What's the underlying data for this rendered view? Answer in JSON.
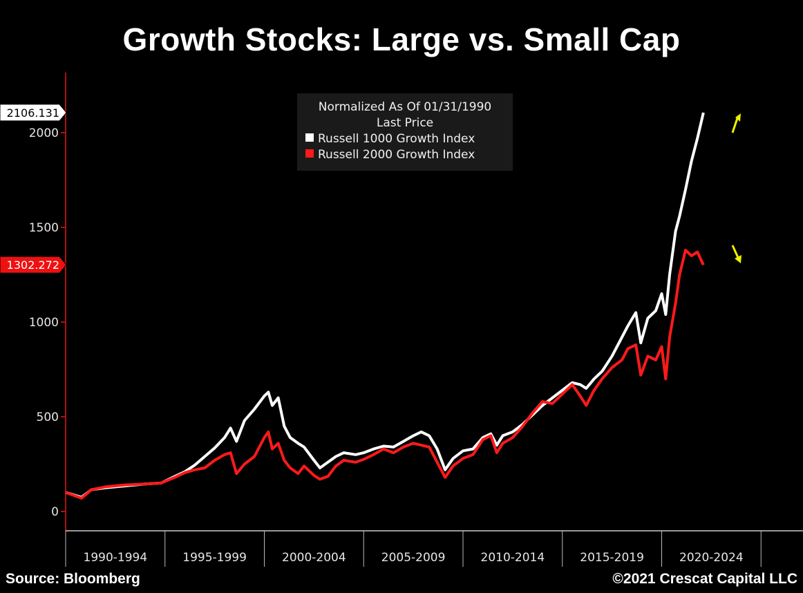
{
  "chart_data": {
    "type": "line",
    "title": "Growth Stocks: Large vs. Small Cap",
    "legend": {
      "header": "Normalized As Of 01/31/1990",
      "subheader": "Last Price",
      "placement": "top-center"
    },
    "ylim": [
      -80,
      2300
    ],
    "yticks": [
      0,
      500,
      1000,
      1500,
      2000
    ],
    "ytick_labels": [
      "0",
      "500",
      "1000",
      "1500",
      "2000"
    ],
    "x_range": [
      1990.0,
      2026.0
    ],
    "x_period_boundaries": [
      1990,
      1995,
      2000,
      2005,
      2010,
      2015,
      2020,
      2025
    ],
    "x_categories": [
      "1990-1994",
      "1995-1999",
      "2000-2004",
      "2005-2009",
      "2010-2014",
      "2015-2019",
      "2020-2024"
    ],
    "series": [
      {
        "name": "Russell 1000 Growth Index",
        "color": "#ffffff",
        "last_value": "2106.131",
        "points": [
          [
            1990.0,
            100
          ],
          [
            1990.8,
            75
          ],
          [
            1991.3,
            115
          ],
          [
            1992.0,
            125
          ],
          [
            1993.0,
            135
          ],
          [
            1994.0,
            145
          ],
          [
            1994.8,
            150
          ],
          [
            1995.5,
            185
          ],
          [
            1996.0,
            210
          ],
          [
            1996.5,
            245
          ],
          [
            1997.0,
            290
          ],
          [
            1997.5,
            335
          ],
          [
            1998.0,
            390
          ],
          [
            1998.3,
            440
          ],
          [
            1998.6,
            370
          ],
          [
            1999.0,
            480
          ],
          [
            1999.5,
            540
          ],
          [
            2000.0,
            610
          ],
          [
            2000.2,
            630
          ],
          [
            2000.4,
            560
          ],
          [
            2000.7,
            600
          ],
          [
            2001.0,
            450
          ],
          [
            2001.3,
            390
          ],
          [
            2001.7,
            360
          ],
          [
            2002.0,
            340
          ],
          [
            2002.5,
            270
          ],
          [
            2002.8,
            230
          ],
          [
            2003.2,
            260
          ],
          [
            2003.6,
            290
          ],
          [
            2004.0,
            310
          ],
          [
            2004.6,
            300
          ],
          [
            2005.0,
            310
          ],
          [
            2005.5,
            330
          ],
          [
            2006.0,
            345
          ],
          [
            2006.5,
            340
          ],
          [
            2007.0,
            370
          ],
          [
            2007.5,
            400
          ],
          [
            2007.9,
            420
          ],
          [
            2008.3,
            400
          ],
          [
            2008.7,
            330
          ],
          [
            2009.1,
            220
          ],
          [
            2009.5,
            280
          ],
          [
            2010.0,
            320
          ],
          [
            2010.5,
            330
          ],
          [
            2011.0,
            390
          ],
          [
            2011.4,
            410
          ],
          [
            2011.7,
            350
          ],
          [
            2012.0,
            400
          ],
          [
            2012.5,
            420
          ],
          [
            2013.0,
            460
          ],
          [
            2013.5,
            510
          ],
          [
            2014.0,
            560
          ],
          [
            2014.5,
            600
          ],
          [
            2015.0,
            640
          ],
          [
            2015.5,
            680
          ],
          [
            2015.9,
            670
          ],
          [
            2016.2,
            650
          ],
          [
            2016.6,
            700
          ],
          [
            2017.0,
            740
          ],
          [
            2017.5,
            820
          ],
          [
            2018.0,
            920
          ],
          [
            2018.3,
            980
          ],
          [
            2018.7,
            1050
          ],
          [
            2018.95,
            890
          ],
          [
            2019.3,
            1020
          ],
          [
            2019.7,
            1060
          ],
          [
            2020.0,
            1150
          ],
          [
            2020.2,
            1040
          ],
          [
            2020.4,
            1250
          ],
          [
            2020.7,
            1480
          ],
          [
            2020.9,
            1560
          ],
          [
            2021.2,
            1700
          ],
          [
            2021.5,
            1850
          ],
          [
            2021.8,
            1970
          ],
          [
            2022.1,
            2106
          ]
        ]
      },
      {
        "name": "Russell 2000 Growth Index",
        "color": "#ff1a1a",
        "last_value": "1302.272",
        "points": [
          [
            1990.0,
            100
          ],
          [
            1990.8,
            70
          ],
          [
            1991.3,
            115
          ],
          [
            1992.0,
            130
          ],
          [
            1993.0,
            140
          ],
          [
            1994.0,
            145
          ],
          [
            1994.8,
            150
          ],
          [
            1995.5,
            180
          ],
          [
            1996.0,
            205
          ],
          [
            1996.5,
            220
          ],
          [
            1997.0,
            230
          ],
          [
            1997.5,
            270
          ],
          [
            1998.0,
            300
          ],
          [
            1998.3,
            310
          ],
          [
            1998.6,
            200
          ],
          [
            1999.0,
            250
          ],
          [
            1999.5,
            290
          ],
          [
            2000.0,
            390
          ],
          [
            2000.2,
            420
          ],
          [
            2000.4,
            330
          ],
          [
            2000.7,
            360
          ],
          [
            2001.0,
            270
          ],
          [
            2001.3,
            230
          ],
          [
            2001.7,
            200
          ],
          [
            2002.0,
            240
          ],
          [
            2002.5,
            190
          ],
          [
            2002.8,
            170
          ],
          [
            2003.2,
            185
          ],
          [
            2003.6,
            240
          ],
          [
            2004.0,
            270
          ],
          [
            2004.6,
            260
          ],
          [
            2005.0,
            275
          ],
          [
            2005.5,
            300
          ],
          [
            2006.0,
            330
          ],
          [
            2006.5,
            310
          ],
          [
            2007.0,
            340
          ],
          [
            2007.5,
            360
          ],
          [
            2007.9,
            350
          ],
          [
            2008.3,
            340
          ],
          [
            2008.7,
            260
          ],
          [
            2009.1,
            180
          ],
          [
            2009.5,
            240
          ],
          [
            2010.0,
            280
          ],
          [
            2010.5,
            300
          ],
          [
            2011.0,
            380
          ],
          [
            2011.4,
            400
          ],
          [
            2011.7,
            310
          ],
          [
            2012.0,
            360
          ],
          [
            2012.5,
            390
          ],
          [
            2013.0,
            450
          ],
          [
            2013.5,
            520
          ],
          [
            2014.0,
            580
          ],
          [
            2014.5,
            570
          ],
          [
            2015.0,
            620
          ],
          [
            2015.5,
            670
          ],
          [
            2015.9,
            610
          ],
          [
            2016.2,
            560
          ],
          [
            2016.6,
            640
          ],
          [
            2017.0,
            700
          ],
          [
            2017.5,
            760
          ],
          [
            2018.0,
            800
          ],
          [
            2018.3,
            860
          ],
          [
            2018.7,
            880
          ],
          [
            2018.95,
            720
          ],
          [
            2019.3,
            820
          ],
          [
            2019.7,
            800
          ],
          [
            2020.0,
            870
          ],
          [
            2020.2,
            700
          ],
          [
            2020.4,
            920
          ],
          [
            2020.7,
            1100
          ],
          [
            2020.9,
            1250
          ],
          [
            2021.2,
            1380
          ],
          [
            2021.5,
            1350
          ],
          [
            2021.8,
            1370
          ],
          [
            2022.1,
            1302
          ]
        ]
      }
    ]
  },
  "footer": {
    "source": "Source: Bloomberg",
    "copyright": "©2021 Crescat Capital LLC"
  }
}
